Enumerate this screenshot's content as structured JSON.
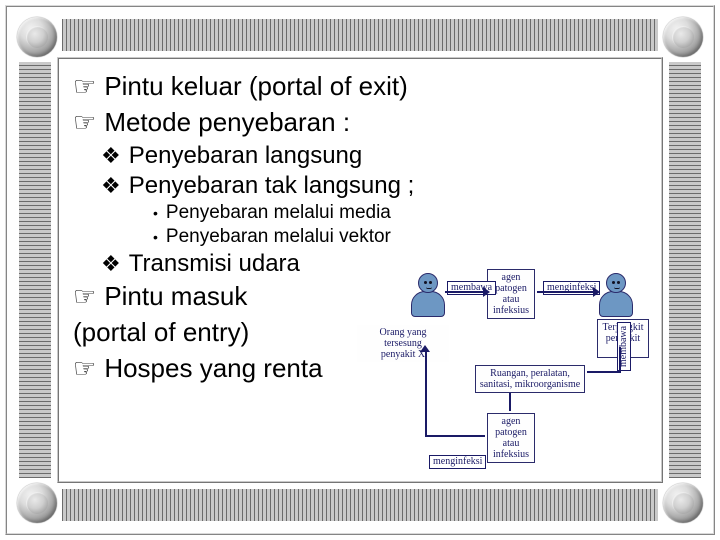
{
  "frame": {
    "border_color": "#c9c9c9",
    "hatch_colors": [
      "#6b6b6b",
      "#c9c9c9"
    ],
    "corner_gradient": [
      "#f2f2f2",
      "#9f9f9f",
      "#6e6e6e"
    ]
  },
  "bullets": {
    "level1_glyph": "☞",
    "level2_glyph": "❖",
    "level3_glyph": "•"
  },
  "content": {
    "l1a": "Pintu keluar (portal of exit)",
    "l1b": "Metode penyebaran :",
    "l2a": "Penyebaran langsung",
    "l2b": "Penyebaran tak langsung ;",
    "l3a": "Penyebaran melalui media",
    "l3b": "Penyebaran melalui vektor",
    "l2c": "Transmisi udara",
    "l1c": "Pintu masuk",
    "l1c2": "(portal of  entry)",
    "l1d": "Hospes yang renta"
  },
  "diagram": {
    "node_top": "agen\npatogen\natau\ninfeksius",
    "node_right": "Terjangkit\npenyakit X",
    "node_left": "Orang yang tersesung\npenyakit X",
    "node_mid": "Ruangan, peralatan,\nsanitasi, mikroorganisme",
    "node_bottom": "agen\npatogen\natau\ninfeksius",
    "edge_top_left": "membawa",
    "edge_top_right": "menginfeksi",
    "edge_right": "membawa",
    "edge_bottom": "menginfeksi",
    "colors": {
      "node_border": "#2b2b6b",
      "node_text": "#1a1a66",
      "person_fill": "#6d97c3"
    }
  }
}
